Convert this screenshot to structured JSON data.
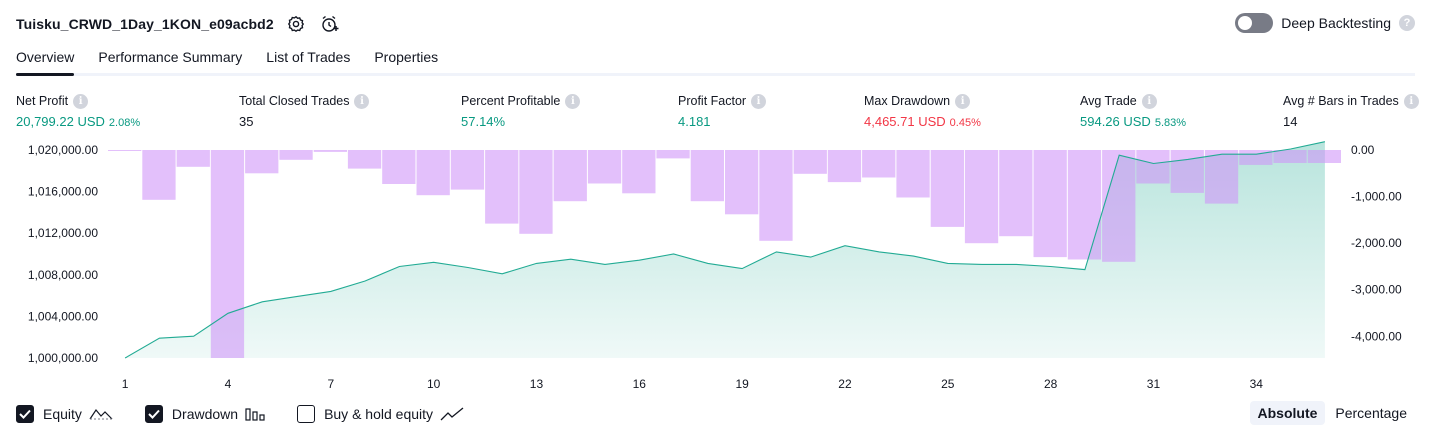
{
  "header": {
    "title": "Tuisku_CRWD_1Day_1KON_e09acbd2",
    "settings_icon": "gear-icon",
    "alert_icon": "alarm-clock-add-icon",
    "deep_backtesting_label": "Deep Backtesting",
    "deep_backtesting_enabled": false,
    "help_glyph": "?"
  },
  "tabs": [
    {
      "label": "Overview",
      "active": true
    },
    {
      "label": "Performance Summary",
      "active": false
    },
    {
      "label": "List of Trades",
      "active": false
    },
    {
      "label": "Properties",
      "active": false
    }
  ],
  "metrics": [
    {
      "label": "Net Profit",
      "value": "20,799.22 USD",
      "sub": "2.08%",
      "tone": "pos"
    },
    {
      "label": "Total Closed Trades",
      "value": "35",
      "sub": "",
      "tone": "plain"
    },
    {
      "label": "Percent Profitable",
      "value": "57.14%",
      "sub": "",
      "tone": "pos"
    },
    {
      "label": "Profit Factor",
      "value": "4.181",
      "sub": "",
      "tone": "pos"
    },
    {
      "label": "Max Drawdown",
      "value": "4,465.71 USD",
      "sub": "0.45%",
      "tone": "neg"
    },
    {
      "label": "Avg Trade",
      "value": "594.26 USD",
      "sub": "5.83%",
      "tone": "pos"
    },
    {
      "label": "Avg # Bars in Trades",
      "value": "14",
      "sub": "",
      "tone": "plain"
    }
  ],
  "info_glyph": "i",
  "colors": {
    "positive": "#089981",
    "negative": "#f23645",
    "equity_line": "#22ab94",
    "drawdown_bar": "#ce93f8",
    "text": "#131722"
  },
  "chart_data": {
    "type": "area",
    "x_ticks": [
      "1",
      "4",
      "7",
      "10",
      "13",
      "16",
      "19",
      "22",
      "25",
      "28",
      "31",
      "34"
    ],
    "left_axis": {
      "ticks": [
        "1,020,000.00",
        "1,016,000.00",
        "1,012,000.00",
        "1,008,000.00",
        "1,004,000.00",
        "1,000,000.00"
      ],
      "range": [
        1000000,
        1020000
      ]
    },
    "right_axis": {
      "ticks": [
        "0.00",
        "-1,000.00",
        "-2,000.00",
        "-3,000.00",
        "-4,000.00"
      ],
      "range": [
        -4465.71,
        0
      ]
    },
    "series": [
      {
        "name": "Equity",
        "type": "area",
        "x": [
          1,
          2,
          3,
          4,
          5,
          6,
          7,
          8,
          9,
          10,
          11,
          12,
          13,
          14,
          15,
          16,
          17,
          18,
          19,
          20,
          21,
          22,
          23,
          24,
          25,
          26,
          27,
          28,
          29,
          30,
          31,
          32,
          33,
          34,
          35,
          36
        ],
        "values": [
          1000000,
          1001900,
          1002100,
          1004300,
          1005400,
          1005900,
          1006400,
          1007400,
          1008800,
          1009200,
          1008700,
          1008100,
          1009100,
          1009500,
          1009000,
          1009400,
          1010000,
          1009100,
          1008600,
          1010200,
          1009700,
          1010800,
          1010200,
          1009800,
          1009100,
          1009000,
          1009000,
          1008800,
          1008500,
          1019500,
          1018700,
          1019100,
          1019600,
          1019600,
          1020100,
          1020800
        ]
      },
      {
        "name": "Drawdown",
        "type": "bar",
        "x": [
          1,
          2,
          3,
          4,
          5,
          6,
          7,
          8,
          9,
          10,
          11,
          12,
          13,
          14,
          15,
          16,
          17,
          18,
          19,
          20,
          21,
          22,
          23,
          24,
          25,
          26,
          27,
          28,
          29,
          30,
          31,
          32,
          33,
          34,
          35,
          36
        ],
        "values": [
          -20,
          -1070,
          -360,
          -4465.71,
          -500,
          -210,
          -40,
          -400,
          -730,
          -970,
          -850,
          -1580,
          -1800,
          -1100,
          -720,
          -930,
          -180,
          -1100,
          -1380,
          -1950,
          -510,
          -690,
          -590,
          -1020,
          -1650,
          -2000,
          -1850,
          -2300,
          -2350,
          -2400,
          -720,
          -920,
          -1150,
          -320,
          -280,
          -280
        ]
      },
      {
        "name": "Buy & hold equity",
        "visible": false,
        "values": []
      }
    ]
  },
  "legend": [
    {
      "label": "Equity",
      "checked": true,
      "icon": "equity-line-icon"
    },
    {
      "label": "Drawdown",
      "checked": true,
      "icon": "drawdown-bars-icon"
    },
    {
      "label": "Buy & hold equity",
      "checked": false,
      "icon": "buy-hold-line-icon"
    }
  ],
  "mode": {
    "options": [
      "Absolute",
      "Percentage"
    ],
    "selected": "Absolute"
  }
}
